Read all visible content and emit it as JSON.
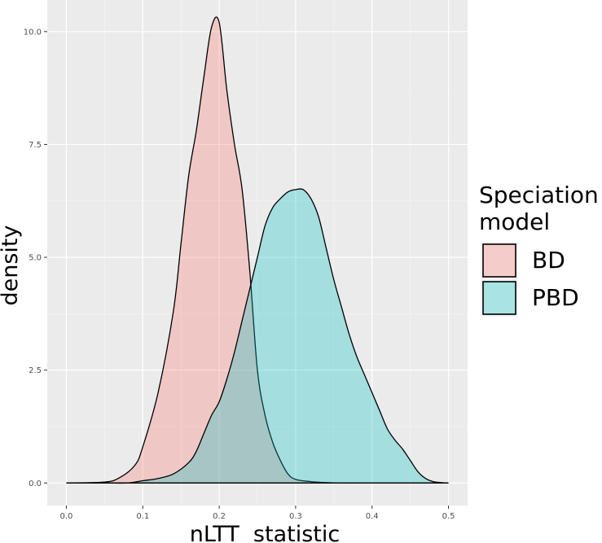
{
  "chart_data": {
    "type": "area",
    "xlabel": "nLTT  statistic",
    "ylabel": "density",
    "xlim": [
      -0.025,
      0.525
    ],
    "ylim": [
      -0.5,
      10.7
    ],
    "x_ticks": [
      0.0,
      0.1,
      0.2,
      0.3,
      0.4,
      0.5
    ],
    "x_tick_labels": [
      "0.0",
      "0.1",
      "0.2",
      "0.3",
      "0.4",
      "0.5"
    ],
    "y_ticks": [
      0.0,
      2.5,
      5.0,
      7.5,
      10.0
    ],
    "y_tick_labels": [
      "0.0",
      "2.5",
      "5.0",
      "7.5",
      "10.0"
    ],
    "grid": true,
    "legend": {
      "title_lines": [
        "Speciation",
        "model"
      ],
      "placement": "right"
    },
    "series": [
      {
        "name": "BD",
        "color": "#F8766D",
        "x": [
          0.0,
          0.05,
          0.07,
          0.09,
          0.1,
          0.12,
          0.14,
          0.15,
          0.16,
          0.17,
          0.18,
          0.19,
          0.2,
          0.21,
          0.22,
          0.23,
          0.24,
          0.25,
          0.26,
          0.27,
          0.28,
          0.29,
          0.3,
          0.32,
          0.34,
          0.36,
          0.38,
          0.4,
          0.5
        ],
        "values": [
          0.0,
          0.02,
          0.12,
          0.4,
          0.8,
          2.0,
          3.8,
          5.3,
          6.8,
          7.8,
          9.0,
          10.1,
          10.2,
          8.7,
          7.5,
          6.5,
          4.7,
          2.5,
          1.5,
          0.9,
          0.5,
          0.2,
          0.08,
          0.03,
          0.01,
          0.0,
          0.0,
          0.0,
          0.0
        ]
      },
      {
        "name": "PBD",
        "color": "#00BFC4",
        "x": [
          0.0,
          0.05,
          0.08,
          0.1,
          0.12,
          0.14,
          0.16,
          0.17,
          0.18,
          0.19,
          0.2,
          0.21,
          0.22,
          0.23,
          0.24,
          0.25,
          0.26,
          0.27,
          0.28,
          0.29,
          0.3,
          0.31,
          0.32,
          0.33,
          0.34,
          0.35,
          0.36,
          0.37,
          0.38,
          0.39,
          0.4,
          0.41,
          0.42,
          0.43,
          0.44,
          0.45,
          0.46,
          0.47,
          0.48,
          0.49,
          0.5
        ],
        "values": [
          0.0,
          0.0,
          0.0,
          0.05,
          0.1,
          0.2,
          0.45,
          0.7,
          1.1,
          1.5,
          1.8,
          2.3,
          2.9,
          3.6,
          4.3,
          5.0,
          5.7,
          6.1,
          6.3,
          6.45,
          6.5,
          6.5,
          6.3,
          5.9,
          5.2,
          4.5,
          3.9,
          3.3,
          2.8,
          2.4,
          2.0,
          1.6,
          1.2,
          0.95,
          0.75,
          0.5,
          0.25,
          0.1,
          0.03,
          0.01,
          0.0
        ]
      }
    ]
  }
}
